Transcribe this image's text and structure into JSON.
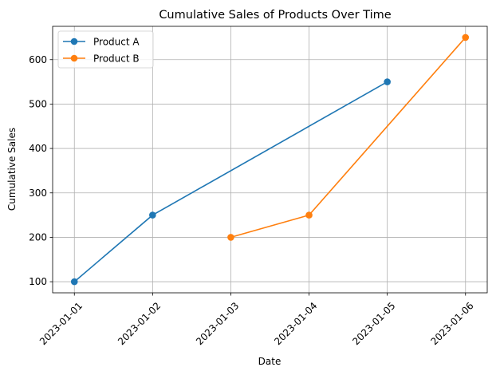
{
  "chart_data": {
    "type": "line",
    "title": "Cumulative Sales of Products Over Time",
    "xlabel": "Date",
    "ylabel": "Cumulative Sales",
    "x": [
      "2023-01-01",
      "2023-01-02",
      "2023-01-03",
      "2023-01-04",
      "2023-01-05",
      "2023-01-06"
    ],
    "yticks": [
      100,
      200,
      300,
      400,
      500,
      600
    ],
    "ylim": [
      75,
      675
    ],
    "grid": true,
    "legend_position": "top-left",
    "series": [
      {
        "name": "Product A",
        "color": "#1f77b4",
        "x": [
          "2023-01-01",
          "2023-01-02",
          "2023-01-05"
        ],
        "values": [
          100,
          250,
          550
        ]
      },
      {
        "name": "Product B",
        "color": "#ff7f0e",
        "x": [
          "2023-01-03",
          "2023-01-04",
          "2023-01-06"
        ],
        "values": [
          200,
          250,
          650
        ]
      }
    ]
  }
}
